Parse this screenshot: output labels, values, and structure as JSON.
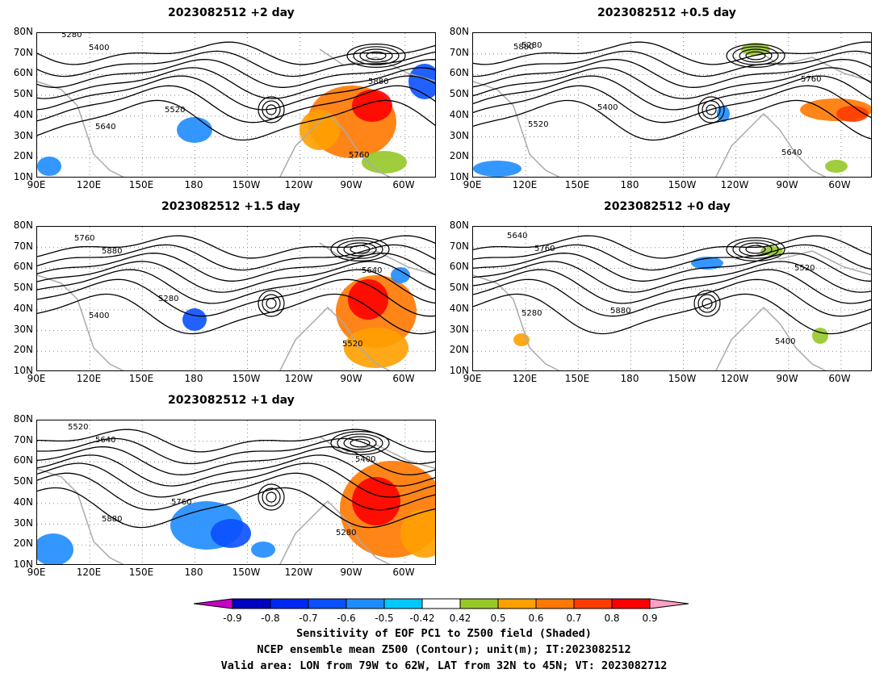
{
  "panels": [
    {
      "title": "2023082512  +2 day"
    },
    {
      "title": "2023082512  +0.5 day"
    },
    {
      "title": "2023082512  +1.5 day"
    },
    {
      "title": "2023082512  +0 day"
    },
    {
      "title": "2023082512  +1 day"
    }
  ],
  "axes": {
    "lat_labels": [
      "80N",
      "70N",
      "60N",
      "50N",
      "40N",
      "30N",
      "20N",
      "10N"
    ],
    "lon_labels": [
      "90E",
      "120E",
      "150E",
      "180",
      "150W",
      "120W",
      "90W",
      "60W"
    ]
  },
  "contour_labels": [
    "5280",
    "5400",
    "5520",
    "5640",
    "5760",
    "5880"
  ],
  "colorbar": {
    "ticks": [
      "-0.9",
      "-0.8",
      "-0.7",
      "-0.6",
      "-0.5",
      "-0.42",
      "0.42",
      "0.5",
      "0.6",
      "0.7",
      "0.8",
      "0.9"
    ],
    "colors": [
      "#c800c8",
      "#0000c0",
      "#0028f0",
      "#0a50ff",
      "#1e8cff",
      "#00c8ff",
      "#ffffff",
      "#96c828",
      "#ffa000",
      "#ff7800",
      "#ff3c00",
      "#ff0000",
      "#ffa0c8"
    ]
  },
  "caption": {
    "line1": "Sensitivity of EOF PC1 to Z500 field (Shaded)",
    "line2": "NCEP ensemble mean Z500 (Contour); unit(m); IT:2023082512",
    "line3": "Valid area: LON from 79W to 62W, LAT from 32N to 45N; VT: 2023082712"
  }
}
